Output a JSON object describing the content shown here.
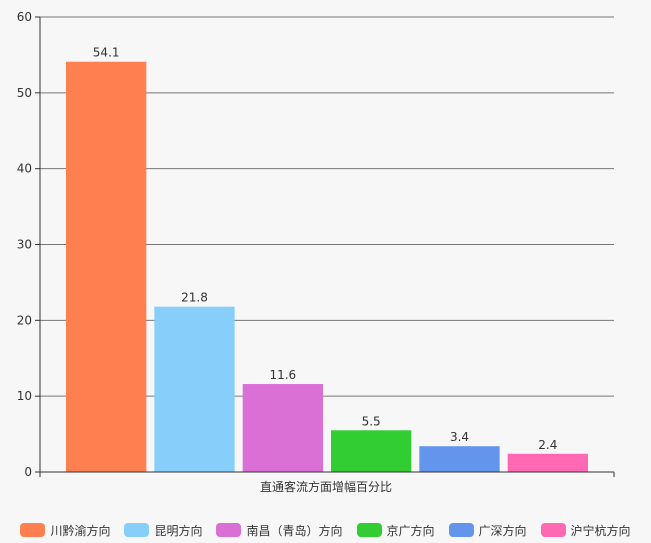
{
  "chart_data": {
    "type": "bar",
    "title": "",
    "xlabel": "直通客流方面增幅百分比",
    "ylabel": "",
    "ylim": [
      0,
      60
    ],
    "yticks": [
      0,
      10,
      20,
      30,
      40,
      50,
      60
    ],
    "grid": true,
    "legend_position": "bottom",
    "series": [
      {
        "name": "川黔渝方向",
        "value": 54.1,
        "label": "54.1",
        "color": "#ff7f50"
      },
      {
        "name": "昆明方向",
        "value": 21.8,
        "label": "21.8",
        "color": "#87cefa"
      },
      {
        "name": "南昌（青岛）方向",
        "value": 11.6,
        "label": "11.6",
        "color": "#da70d6"
      },
      {
        "name": "京广方向",
        "value": 5.5,
        "label": "5.5",
        "color": "#32cd32"
      },
      {
        "name": "广深方向",
        "value": 3.4,
        "label": "3.4",
        "color": "#6495ed"
      },
      {
        "name": "沪宁杭方向",
        "value": 2.4,
        "label": "2.4",
        "color": "#ff69b4"
      }
    ]
  }
}
